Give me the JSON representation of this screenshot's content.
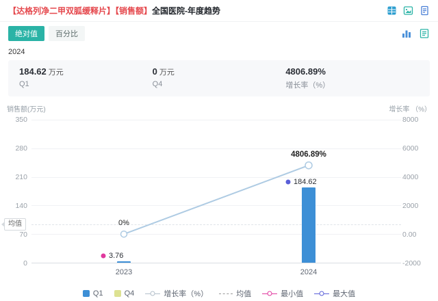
{
  "header": {
    "title_highlight": "【达格列净二甲双胍缓释片】【销售额】",
    "title_rest": "全国医院-年度趋势",
    "icons": [
      "excel-export-icon",
      "image-export-icon",
      "doc-export-icon"
    ]
  },
  "view_tabs": {
    "absolute": "绝对值",
    "percent": "百分比"
  },
  "toolbar_icons": [
    "bar-chart-view-icon",
    "report-view-icon"
  ],
  "period": "2024",
  "stats": [
    {
      "value": "184.62",
      "unit": "万元",
      "label": "Q1"
    },
    {
      "value": "0",
      "unit": "万元",
      "label": "Q4"
    },
    {
      "value": "4806.89%",
      "unit": "",
      "label": "增长率（%）"
    }
  ],
  "chart_data": {
    "type": "bar",
    "x": [
      "2023",
      "2024"
    ],
    "left_axis": {
      "label": "销售额(万元)",
      "range": [
        0,
        350
      ],
      "ticks": [
        "350",
        "280",
        "210",
        "140",
        "70",
        "0"
      ]
    },
    "right_axis": {
      "label": "增长率 （%）",
      "range": [
        -2000,
        8000
      ],
      "ticks": [
        "8000",
        "6000",
        "4000",
        "2000",
        "0.00",
        "-2000"
      ]
    },
    "bar_series": {
      "name": "Q1",
      "color": "#3d8fd6",
      "values": [
        3.76,
        184.62
      ]
    },
    "bar_series_2": {
      "name": "Q4",
      "color": "#dde292",
      "values": [
        null,
        0
      ]
    },
    "line_series": {
      "name": "增长率（%）",
      "color": "#aecbe3",
      "values": [
        0,
        4806.89
      ],
      "labels": [
        "0%",
        "4806.89%"
      ]
    },
    "mean": {
      "name": "均值",
      "value": 94.19
    },
    "min_point": {
      "name": "最小值",
      "color": "#e0399e",
      "x_index": 0,
      "value": 3.76,
      "label": "3.76"
    },
    "max_point": {
      "name": "最大值",
      "color": "#5a5fd8",
      "x_index": 1,
      "value": 184.62,
      "label": "184.62"
    },
    "grid": true,
    "legend_position": "bottom"
  },
  "legend": [
    {
      "label": "Q1",
      "type": "square",
      "color": "#3d8fd6"
    },
    {
      "label": "Q4",
      "type": "square",
      "color": "#dde292"
    },
    {
      "label": "增长率（%）",
      "type": "line-circle",
      "color": "#b3bfca"
    },
    {
      "label": "均值",
      "type": "dash",
      "color": "#999999"
    },
    {
      "label": "最小值",
      "type": "line-circle",
      "color": "#e0399e"
    },
    {
      "label": "最大值",
      "type": "line-circle",
      "color": "#5a5fd8"
    }
  ],
  "colors": {
    "accent": "#2ab3a6",
    "title_highlight": "#e5484d",
    "stats_bg": "#f7f8fa",
    "bar_blue": "#3d8fd6",
    "line_blue": "#aecbe3",
    "min_pink": "#e0399e",
    "max_indigo": "#5a5fd8"
  }
}
